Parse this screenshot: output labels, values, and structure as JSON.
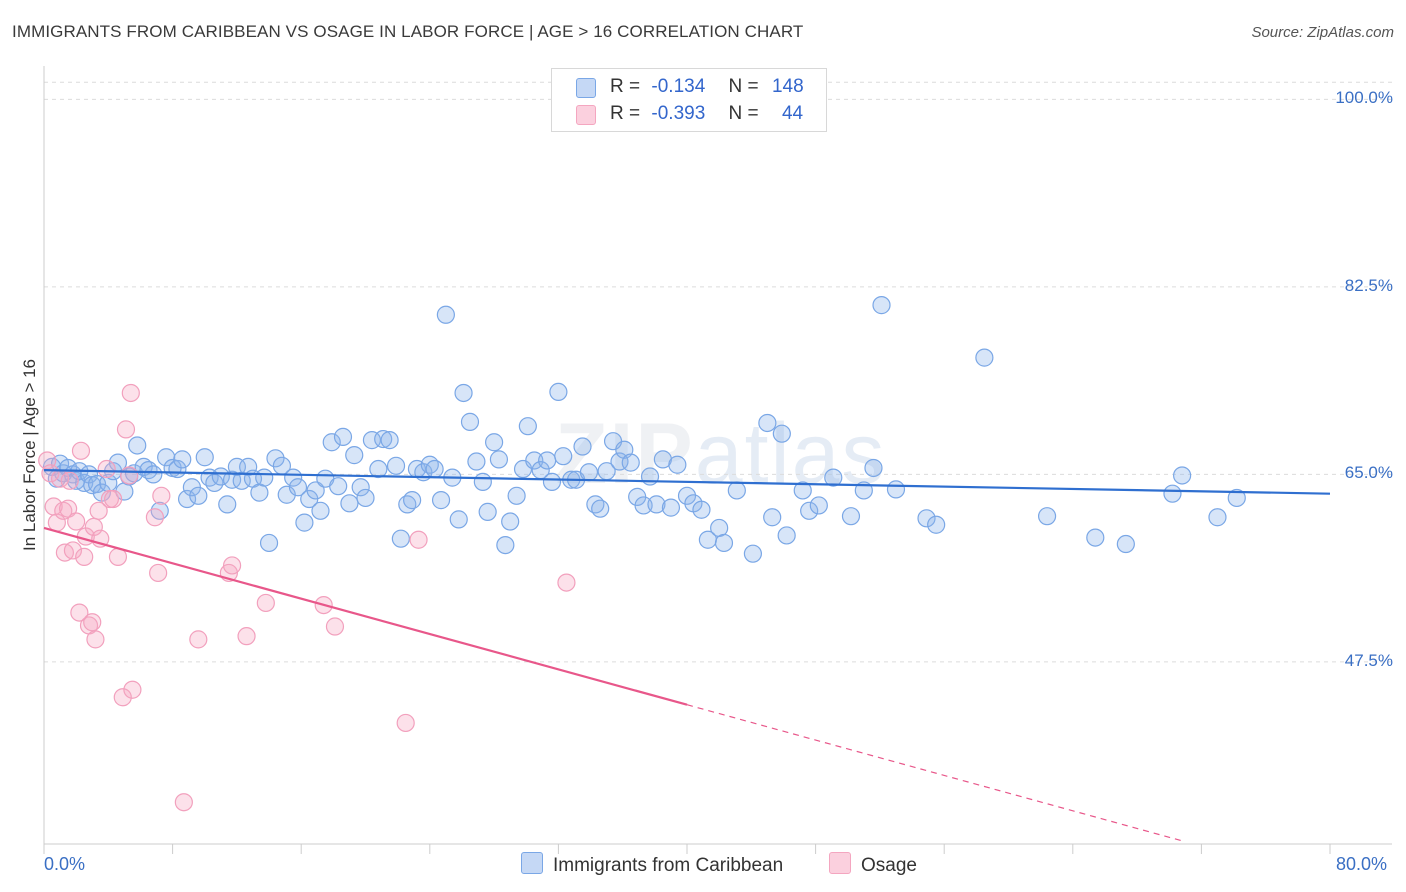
{
  "title": "IMMIGRANTS FROM CARIBBEAN VS OSAGE IN LABOR FORCE | AGE > 16 CORRELATION CHART",
  "source": "Source: ZipAtlas.com",
  "watermark": {
    "zip": "ZIP",
    "atlas": "atlas"
  },
  "legend": {
    "rows": [
      {
        "r_label": "R =",
        "r_value": "-0.134",
        "n_label": "N =",
        "n_value": "148"
      },
      {
        "r_label": "R =",
        "r_value": "-0.393",
        "n_label": "N =",
        "n_value": "44"
      }
    ]
  },
  "chart_data": {
    "type": "scatter",
    "title": "IMMIGRANTS FROM CARIBBEAN VS OSAGE IN LABOR FORCE | AGE > 16 CORRELATION CHART",
    "xlabel": "",
    "ylabel": "In Labor Force | Age > 16",
    "xlim": [
      0,
      80
    ],
    "ylim": [
      30.5,
      102
    ],
    "x_tick_labels": [
      "0.0%",
      "80.0%"
    ],
    "y_ticks": [
      47.5,
      65.0,
      82.5,
      100.0
    ],
    "y_tick_labels": [
      "47.5%",
      "65.0%",
      "82.5%",
      "100.0%"
    ],
    "grid": true,
    "legend_position": "top-center",
    "series": [
      {
        "name": "Immigrants from Caribbean",
        "color": "#7aa7e6",
        "line_color": "#2f6fd0",
        "r": -0.134,
        "n": 148,
        "trend": {
          "x": [
            0,
            80
          ],
          "y": [
            65.4,
            63.2
          ],
          "dashed_from": null
        },
        "points": [
          [
            0.5,
            65.7
          ],
          [
            0.8,
            64.6
          ],
          [
            1.0,
            66.0
          ],
          [
            1.2,
            65.1
          ],
          [
            1.5,
            65.6
          ],
          [
            1.8,
            65.0
          ],
          [
            2.0,
            64.4
          ],
          [
            2.2,
            65.3
          ],
          [
            2.5,
            64.2
          ],
          [
            2.8,
            65.0
          ],
          [
            3.0,
            64.0
          ],
          [
            3.3,
            64.1
          ],
          [
            3.6,
            63.3
          ],
          [
            4.0,
            64.2
          ],
          [
            4.3,
            65.3
          ],
          [
            4.6,
            66.1
          ],
          [
            5.0,
            63.4
          ],
          [
            5.3,
            64.8
          ],
          [
            5.6,
            65.1
          ],
          [
            5.8,
            67.7
          ],
          [
            6.2,
            65.7
          ],
          [
            6.5,
            65.4
          ],
          [
            6.8,
            65.0
          ],
          [
            7.2,
            61.6
          ],
          [
            7.6,
            66.6
          ],
          [
            8.0,
            65.6
          ],
          [
            8.3,
            65.5
          ],
          [
            8.6,
            66.4
          ],
          [
            8.9,
            62.7
          ],
          [
            9.2,
            63.8
          ],
          [
            9.6,
            63.0
          ],
          [
            10.0,
            66.6
          ],
          [
            10.3,
            64.7
          ],
          [
            10.6,
            64.2
          ],
          [
            11.0,
            64.8
          ],
          [
            11.4,
            62.2
          ],
          [
            11.7,
            64.5
          ],
          [
            12.0,
            65.7
          ],
          [
            12.3,
            64.4
          ],
          [
            12.7,
            65.7
          ],
          [
            13.0,
            64.6
          ],
          [
            13.4,
            63.3
          ],
          [
            13.7,
            64.7
          ],
          [
            14.0,
            58.6
          ],
          [
            14.4,
            66.5
          ],
          [
            14.8,
            65.8
          ],
          [
            15.1,
            63.1
          ],
          [
            15.5,
            64.7
          ],
          [
            15.8,
            63.8
          ],
          [
            16.2,
            60.5
          ],
          [
            16.5,
            62.7
          ],
          [
            16.9,
            63.5
          ],
          [
            17.2,
            61.6
          ],
          [
            17.5,
            64.6
          ],
          [
            17.9,
            68.0
          ],
          [
            18.3,
            63.9
          ],
          [
            18.6,
            68.5
          ],
          [
            19.0,
            62.3
          ],
          [
            19.3,
            66.8
          ],
          [
            19.7,
            63.8
          ],
          [
            20.0,
            62.8
          ],
          [
            20.4,
            68.2
          ],
          [
            20.8,
            65.5
          ],
          [
            21.1,
            68.3
          ],
          [
            21.5,
            68.2
          ],
          [
            21.9,
            65.8
          ],
          [
            22.2,
            59.0
          ],
          [
            22.6,
            62.2
          ],
          [
            22.9,
            62.6
          ],
          [
            23.2,
            65.5
          ],
          [
            23.6,
            65.2
          ],
          [
            24.0,
            65.9
          ],
          [
            24.3,
            65.5
          ],
          [
            24.7,
            62.6
          ],
          [
            25.0,
            79.9
          ],
          [
            25.4,
            64.7
          ],
          [
            25.8,
            60.8
          ],
          [
            26.1,
            72.6
          ],
          [
            26.5,
            69.9
          ],
          [
            26.9,
            66.2
          ],
          [
            27.3,
            64.3
          ],
          [
            27.6,
            61.5
          ],
          [
            28.0,
            68.0
          ],
          [
            28.3,
            66.4
          ],
          [
            28.7,
            58.4
          ],
          [
            29.0,
            60.6
          ],
          [
            29.4,
            63.0
          ],
          [
            29.8,
            65.5
          ],
          [
            30.1,
            69.5
          ],
          [
            30.5,
            66.3
          ],
          [
            30.9,
            65.4
          ],
          [
            31.3,
            66.3
          ],
          [
            31.6,
            64.3
          ],
          [
            32.0,
            72.7
          ],
          [
            32.3,
            66.7
          ],
          [
            32.8,
            64.5
          ],
          [
            33.1,
            64.5
          ],
          [
            33.5,
            67.6
          ],
          [
            33.9,
            65.2
          ],
          [
            34.3,
            62.2
          ],
          [
            34.6,
            61.8
          ],
          [
            35.0,
            65.3
          ],
          [
            35.4,
            68.1
          ],
          [
            35.8,
            66.2
          ],
          [
            36.1,
            67.3
          ],
          [
            36.5,
            66.1
          ],
          [
            36.9,
            62.9
          ],
          [
            37.3,
            62.1
          ],
          [
            37.7,
            64.8
          ],
          [
            38.1,
            62.2
          ],
          [
            38.5,
            66.4
          ],
          [
            39.0,
            61.9
          ],
          [
            39.4,
            65.9
          ],
          [
            40.0,
            63.0
          ],
          [
            40.4,
            62.3
          ],
          [
            40.9,
            61.7
          ],
          [
            41.3,
            58.9
          ],
          [
            42.0,
            60.0
          ],
          [
            42.3,
            58.6
          ],
          [
            43.1,
            63.5
          ],
          [
            44.1,
            57.6
          ],
          [
            45.0,
            69.8
          ],
          [
            45.3,
            61.0
          ],
          [
            45.9,
            68.8
          ],
          [
            46.2,
            59.3
          ],
          [
            47.2,
            63.5
          ],
          [
            47.6,
            61.6
          ],
          [
            48.2,
            62.1
          ],
          [
            49.1,
            64.7
          ],
          [
            50.2,
            61.1
          ],
          [
            51.0,
            63.5
          ],
          [
            51.6,
            65.6
          ],
          [
            52.1,
            80.8
          ],
          [
            53.0,
            63.6
          ],
          [
            54.9,
            60.9
          ],
          [
            55.5,
            60.3
          ],
          [
            58.5,
            75.9
          ],
          [
            62.4,
            61.1
          ],
          [
            65.4,
            59.1
          ],
          [
            67.3,
            58.5
          ],
          [
            70.2,
            63.2
          ],
          [
            70.8,
            64.9
          ],
          [
            73.0,
            61.0
          ],
          [
            74.2,
            62.8
          ]
        ]
      },
      {
        "name": "Osage",
        "color": "#f4a6c0",
        "line_color": "#e8578a",
        "r": -0.393,
        "n": 44,
        "trend": {
          "x": [
            0,
            80
          ],
          "y": [
            60.0,
            27.0
          ],
          "dashed_from": 40
        },
        "points": [
          [
            0.2,
            66.3
          ],
          [
            0.4,
            65.1
          ],
          [
            0.6,
            62.0
          ],
          [
            0.8,
            60.5
          ],
          [
            1.0,
            64.6
          ],
          [
            1.2,
            61.6
          ],
          [
            1.3,
            57.7
          ],
          [
            1.5,
            61.8
          ],
          [
            1.6,
            64.4
          ],
          [
            1.8,
            57.9
          ],
          [
            2.0,
            60.6
          ],
          [
            2.2,
            52.1
          ],
          [
            2.3,
            67.2
          ],
          [
            2.5,
            57.3
          ],
          [
            2.6,
            59.2
          ],
          [
            2.8,
            50.9
          ],
          [
            3.0,
            51.2
          ],
          [
            3.1,
            60.1
          ],
          [
            3.2,
            49.6
          ],
          [
            3.4,
            61.6
          ],
          [
            3.5,
            59.0
          ],
          [
            3.9,
            65.5
          ],
          [
            4.1,
            62.7
          ],
          [
            4.3,
            62.7
          ],
          [
            4.6,
            57.3
          ],
          [
            4.9,
            44.2
          ],
          [
            5.1,
            69.2
          ],
          [
            5.3,
            64.9
          ],
          [
            5.4,
            72.6
          ],
          [
            5.5,
            44.9
          ],
          [
            6.9,
            61.0
          ],
          [
            7.1,
            55.8
          ],
          [
            7.3,
            63.0
          ],
          [
            8.7,
            34.4
          ],
          [
            9.6,
            49.6
          ],
          [
            11.5,
            55.8
          ],
          [
            11.7,
            56.5
          ],
          [
            12.6,
            49.9
          ],
          [
            13.8,
            53.0
          ],
          [
            17.4,
            52.8
          ],
          [
            18.1,
            50.8
          ],
          [
            22.5,
            41.8
          ],
          [
            23.3,
            58.9
          ],
          [
            32.5,
            54.9
          ]
        ]
      }
    ]
  }
}
